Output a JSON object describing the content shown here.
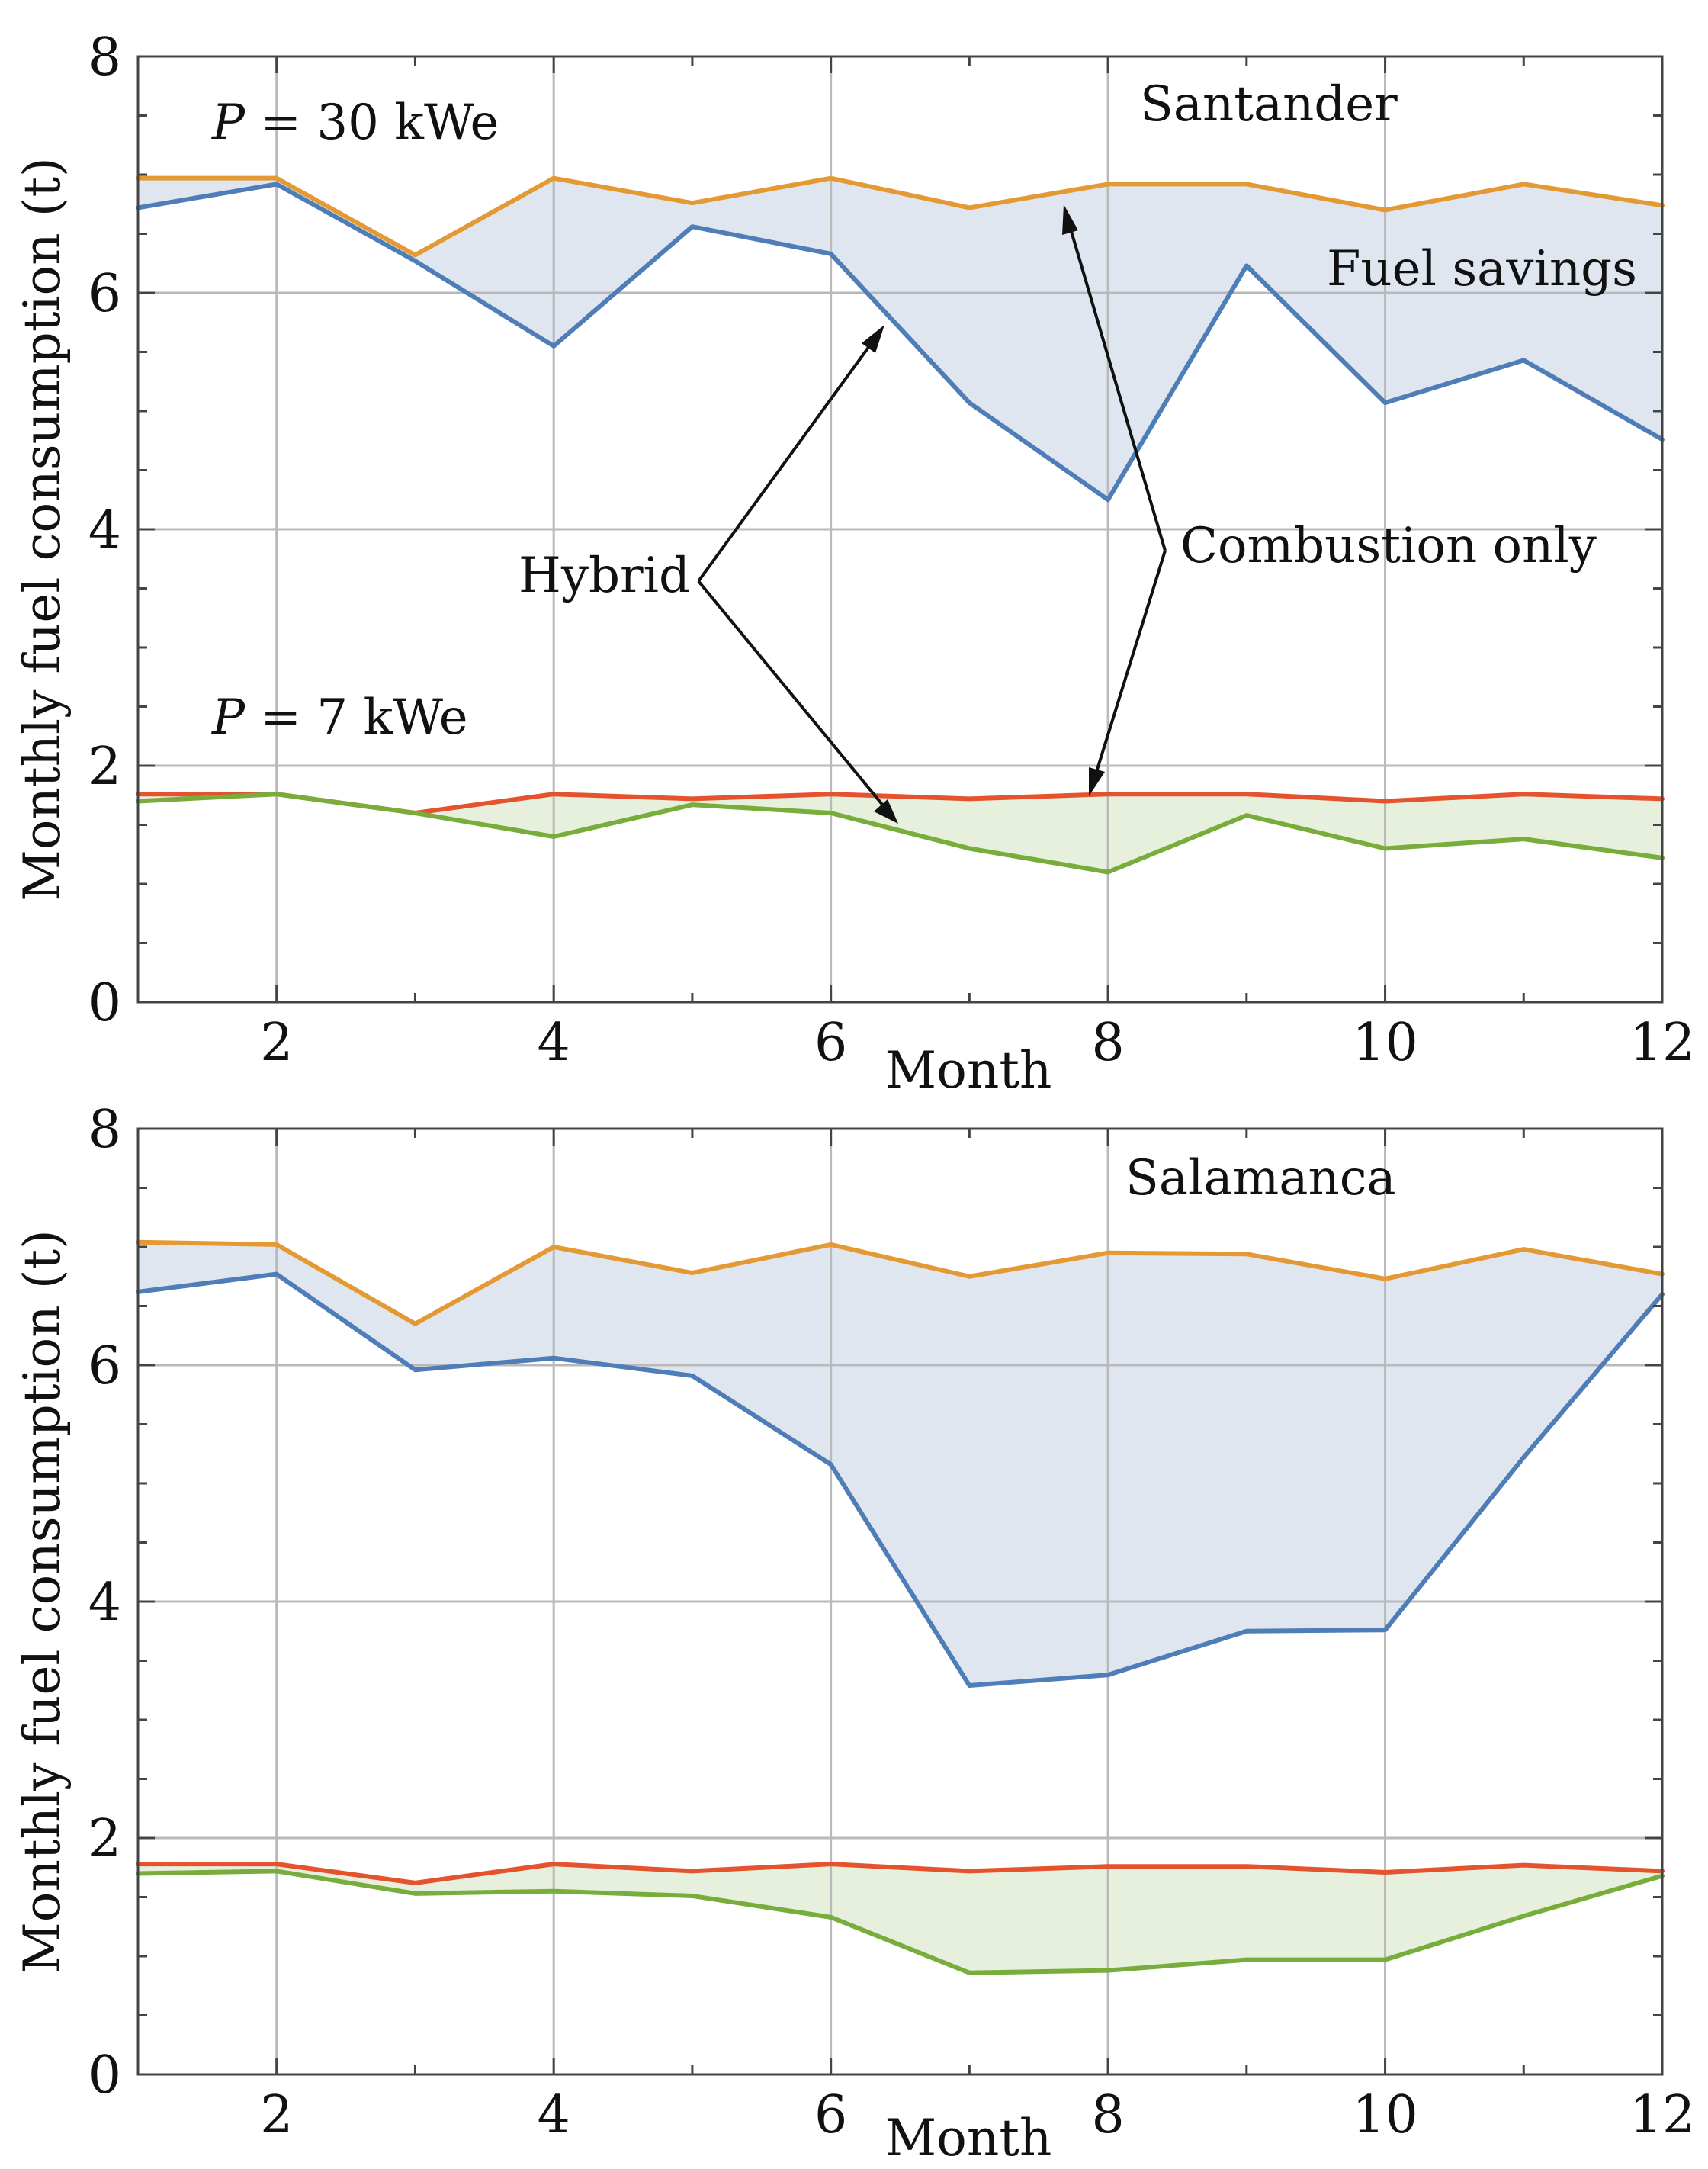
{
  "chart_data": [
    {
      "type": "line",
      "title": "Santander",
      "xlabel": "Month",
      "ylabel": "Monthly fuel consumption (t)",
      "xlim": [
        1,
        12
      ],
      "ylim": [
        0,
        8
      ],
      "x": [
        1,
        2,
        3,
        4,
        5,
        6,
        7,
        8,
        9,
        10,
        11,
        12
      ],
      "x_ticks": [
        2,
        4,
        6,
        8,
        10,
        12
      ],
      "y_ticks": [
        0,
        2,
        4,
        6,
        8
      ],
      "grid": true,
      "series": [
        {
          "name": "Combustion only (P = 30 kWe)",
          "color": "#e39a35",
          "values": [
            6.97,
            6.97,
            6.32,
            6.97,
            6.76,
            6.97,
            6.72,
            6.92,
            6.92,
            6.7,
            6.92,
            6.74
          ]
        },
        {
          "name": "Hybrid (P = 30 kWe)",
          "color": "#4f7db7",
          "values": [
            6.72,
            6.92,
            6.27,
            5.55,
            6.56,
            6.33,
            5.07,
            4.25,
            6.23,
            5.07,
            5.43,
            4.76
          ]
        },
        {
          "name": "Combustion only (P = 7 kWe)",
          "color": "#e5532e",
          "values": [
            1.76,
            1.76,
            1.6,
            1.76,
            1.72,
            1.76,
            1.72,
            1.76,
            1.76,
            1.7,
            1.76,
            1.72
          ]
        },
        {
          "name": "Hybrid (P = 7 kWe)",
          "color": "#78ad3c",
          "values": [
            1.7,
            1.76,
            1.6,
            1.4,
            1.67,
            1.6,
            1.3,
            1.1,
            1.58,
            1.3,
            1.38,
            1.22
          ]
        }
      ],
      "fills": [
        {
          "between": [
            "Combustion only (P = 30 kWe)",
            "Hybrid (P = 30 kWe)"
          ],
          "color": "#dfe6ef"
        },
        {
          "between": [
            "Combustion only (P = 7 kWe)",
            "Hybrid (P = 7 kWe)"
          ],
          "color": "#e6f0dc"
        }
      ],
      "annotations": {
        "p30": {
          "prefix": "P",
          "rest": " = 30 kWe"
        },
        "p7": {
          "prefix": "P",
          "rest": " = 7 kWe"
        },
        "fuel_savings": "Fuel savings",
        "hybrid": "Hybrid",
        "combustion_only": "Combustion only"
      }
    },
    {
      "type": "line",
      "title": "Salamanca",
      "xlabel": "Month",
      "ylabel": "Monthly fuel consumption (t)",
      "xlim": [
        1,
        12
      ],
      "ylim": [
        0,
        8
      ],
      "x": [
        1,
        2,
        3,
        4,
        5,
        6,
        7,
        8,
        9,
        10,
        11,
        12
      ],
      "x_ticks": [
        2,
        4,
        6,
        8,
        10,
        12
      ],
      "y_ticks": [
        0,
        2,
        4,
        6,
        8
      ],
      "grid": true,
      "series": [
        {
          "name": "Combustion only (P = 30 kWe)",
          "color": "#e39a35",
          "values": [
            7.04,
            7.02,
            6.35,
            7.0,
            6.78,
            7.02,
            6.75,
            6.95,
            6.94,
            6.73,
            6.98,
            6.77
          ]
        },
        {
          "name": "Hybrid (P = 30 kWe)",
          "color": "#4f7db7",
          "values": [
            6.62,
            6.77,
            5.96,
            6.06,
            5.91,
            5.16,
            3.29,
            3.38,
            3.75,
            3.76,
            5.22,
            6.6
          ]
        },
        {
          "name": "Combustion only (P = 7 kWe)",
          "color": "#e5532e",
          "values": [
            1.78,
            1.78,
            1.62,
            1.78,
            1.72,
            1.78,
            1.72,
            1.76,
            1.76,
            1.71,
            1.77,
            1.72
          ]
        },
        {
          "name": "Hybrid (P = 7 kWe)",
          "color": "#78ad3c",
          "values": [
            1.7,
            1.72,
            1.53,
            1.55,
            1.51,
            1.33,
            0.86,
            0.88,
            0.97,
            0.97,
            1.34,
            1.68
          ]
        }
      ],
      "fills": [
        {
          "between": [
            "Combustion only (P = 30 kWe)",
            "Hybrid (P = 30 kWe)"
          ],
          "color": "#dfe6ef"
        },
        {
          "between": [
            "Combustion only (P = 7 kWe)",
            "Hybrid (P = 7 kWe)"
          ],
          "color": "#e6f0dc"
        }
      ]
    }
  ]
}
